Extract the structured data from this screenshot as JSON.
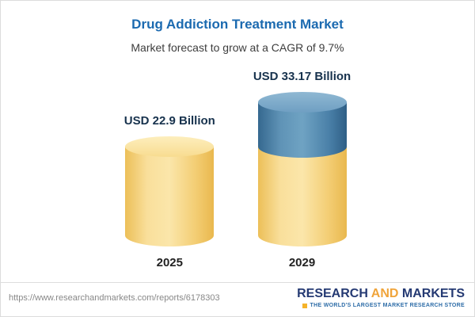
{
  "header": {
    "title": "Drug Addiction Treatment Market",
    "subtitle": "Market forecast to grow at a CAGR of 9.7%",
    "title_color": "#1b6ab0"
  },
  "chart_data": {
    "type": "bar",
    "categories": [
      "2025",
      "2029"
    ],
    "values": [
      22.9,
      33.17
    ],
    "value_labels": [
      "USD 22.9 Billion",
      "USD 33.17 Billion"
    ],
    "title": "Drug Addiction Treatment Market",
    "subtitle": "Market forecast to grow at a CAGR of 9.7%",
    "unit": "USD Billion",
    "cagr": "9.7%",
    "ylim": [
      0,
      33.17
    ],
    "grid": false,
    "legend": false,
    "style": "3d-cylinder",
    "colors": {
      "base_segment": "#f8dd90",
      "growth_segment": "#4a80a8",
      "value_label_text": "#17324d"
    }
  },
  "footer": {
    "url": "https://www.researchandmarkets.com/reports/6178303",
    "logo": {
      "word_research": "RESEARCH",
      "word_and": "AND",
      "word_markets": "MARKETS",
      "tagline": "THE WORLD'S LARGEST MARKET RESEARCH STORE",
      "navy": "#253a73",
      "gold": "#f0a43a"
    }
  }
}
